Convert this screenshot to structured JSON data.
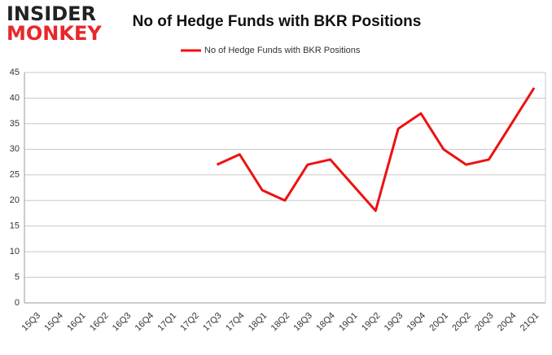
{
  "logo": {
    "line1": "INSIDER",
    "line2": "MONKEY"
  },
  "chart_data": {
    "type": "line",
    "title": "No of Hedge Funds with BKR Positions",
    "categories": [
      "15Q3",
      "15Q4",
      "16Q1",
      "16Q2",
      "16Q3",
      "16Q4",
      "17Q1",
      "17Q2",
      "17Q3",
      "17Q4",
      "18Q1",
      "18Q2",
      "18Q3",
      "18Q4",
      "19Q1",
      "19Q2",
      "19Q3",
      "19Q4",
      "20Q1",
      "20Q2",
      "20Q3",
      "20Q4",
      "21Q1"
    ],
    "series": [
      {
        "name": "No of Hedge Funds with BKR Positions",
        "color": "#ee1111",
        "values": [
          null,
          null,
          null,
          null,
          null,
          null,
          null,
          null,
          27,
          29,
          22,
          20,
          27,
          28,
          23,
          18,
          34,
          37,
          30,
          27,
          28,
          35,
          42
        ]
      }
    ],
    "ylim": [
      0,
      45
    ],
    "yticks": [
      0,
      5,
      10,
      15,
      20,
      25,
      30,
      35,
      40,
      45
    ],
    "grid": true,
    "legend": "top"
  }
}
